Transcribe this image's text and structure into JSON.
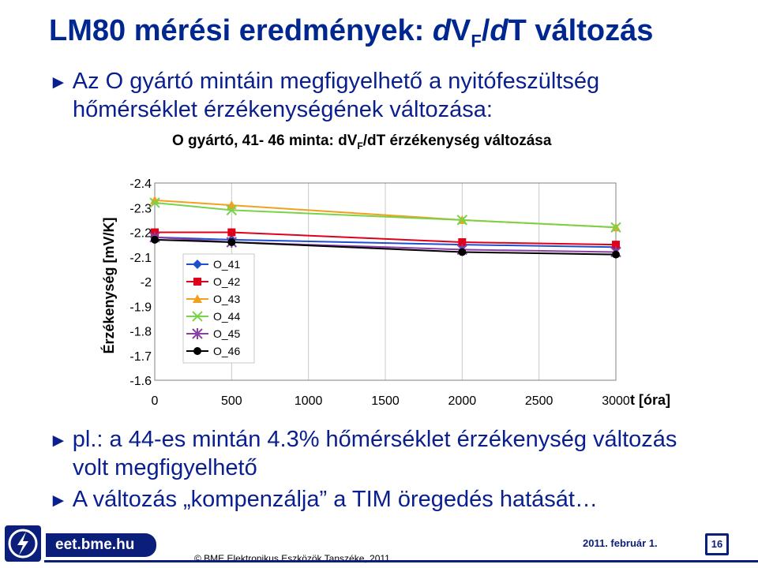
{
  "slide": {
    "title_prefix": "LM80 mérési eredmények: ",
    "title_d1": "d",
    "title_v": "V",
    "title_sub": "F",
    "title_slash": "/",
    "title_d2": "d",
    "title_suffix": "T változás",
    "bullets": [
      {
        "mark": "►",
        "line1": "Az O gyártó mintáin megfigyelhető a nyitófeszültség",
        "line2": "hőmérséklet érzékenységének változása:"
      },
      {
        "mark": "►",
        "line1": "pl.: a 44-es mintán 4.3% hőmérséklet érzékenység változás",
        "line2": "volt megfigyelhető"
      },
      {
        "mark": "►",
        "line1": "A változás „kompenzálja” a TIM öregedés hatását…"
      }
    ]
  },
  "chart_title": {
    "prefix": "O gyártó,  41- 46 minta: dV",
    "sub": "F",
    "suffix": "/dT érzékenység változása"
  },
  "chart_data": {
    "type": "line",
    "ylabel": "Érzékenység [mV/K]",
    "xlabel": "t [óra]",
    "y_reversed": true,
    "ylim": [
      -2.4,
      -1.6
    ],
    "yticks": [
      "-2.4",
      "-2.3",
      "-2.2",
      "-2.1",
      "-2",
      "-1.9",
      "-1.8",
      "-1.7",
      "-1.6"
    ],
    "xlim": [
      0,
      3000
    ],
    "xticks": [
      "0",
      "500",
      "1000",
      "1500",
      "2000",
      "2500",
      "3000"
    ],
    "series": [
      {
        "name": "O_41",
        "color": "#1f4fcf",
        "marker": "diamond",
        "x": [
          0,
          500,
          2000,
          3000
        ],
        "y": [
          -2.18,
          -2.17,
          -2.15,
          -2.14
        ]
      },
      {
        "name": "O_42",
        "color": "#e0001a",
        "marker": "square",
        "x": [
          0,
          500,
          2000,
          3000
        ],
        "y": [
          -2.2,
          -2.2,
          -2.16,
          -2.15
        ]
      },
      {
        "name": "O_43",
        "color": "#f2a020",
        "marker": "triangle",
        "x": [
          0,
          500,
          2000,
          3000
        ],
        "y": [
          -2.33,
          -2.31,
          -2.25,
          -2.22
        ]
      },
      {
        "name": "O_44",
        "color": "#79d34a",
        "marker": "x",
        "x": [
          0,
          500,
          2000,
          3000
        ],
        "y": [
          -2.32,
          -2.29,
          -2.25,
          -2.22
        ]
      },
      {
        "name": "O_45",
        "color": "#8b3fa5",
        "marker": "star",
        "x": [
          0,
          500,
          2000,
          3000
        ],
        "y": [
          -2.18,
          -2.16,
          -2.13,
          -2.12
        ]
      },
      {
        "name": "O_46",
        "color": "#000000",
        "marker": "circle",
        "x": [
          0,
          500,
          2000,
          3000
        ],
        "y": [
          -2.17,
          -2.16,
          -2.12,
          -2.11
        ]
      }
    ]
  },
  "footer": {
    "logo_text": "eet.bme.hu",
    "copyright": "© BME Elektronikus Eszközök Tanszéke, 2011.",
    "date": "2011. február 1.",
    "page": "16"
  },
  "colors": {
    "accent": "#00268f",
    "footer": "#0b1f7a"
  }
}
